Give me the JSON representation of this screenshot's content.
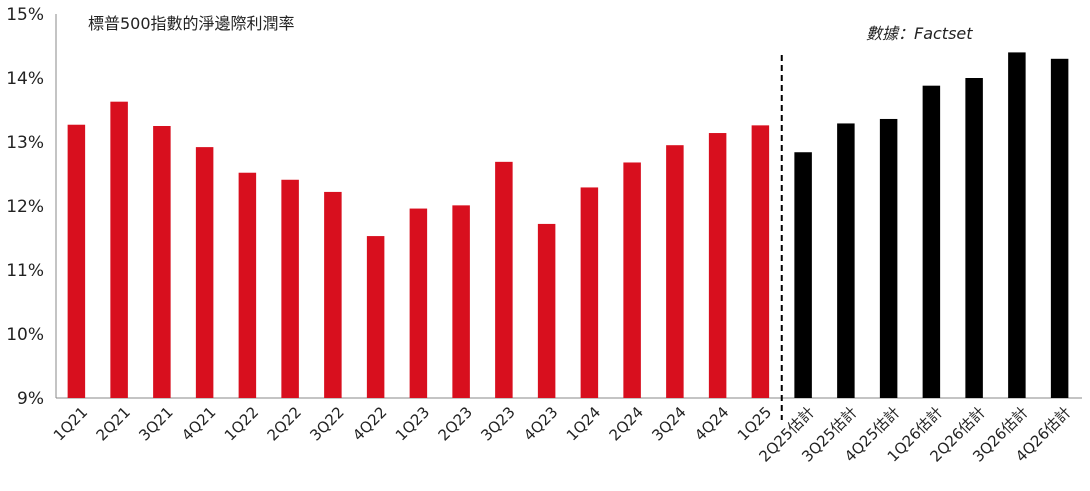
{
  "chart_data": {
    "type": "bar",
    "title": "標普500指數的淨邊際利潤率",
    "source": "數據：Factset",
    "xlabel": "",
    "ylabel": "",
    "ylim": [
      9,
      15
    ],
    "yticks": [
      "9%",
      "10%",
      "11%",
      "12%",
      "13%",
      "14%",
      "15%"
    ],
    "grid": false,
    "colors": {
      "actual": "#d80f1e",
      "estimate": "#000000",
      "divider": "#000000"
    },
    "categories": [
      "1Q21",
      "2Q21",
      "3Q21",
      "4Q21",
      "1Q22",
      "2Q22",
      "3Q22",
      "4Q22",
      "1Q23",
      "2Q23",
      "3Q23",
      "4Q23",
      "1Q24",
      "2Q24",
      "3Q24",
      "4Q24",
      "1Q25",
      "2Q25估計",
      "3Q25估計",
      "4Q25估計",
      "1Q26估計",
      "2Q26估計",
      "3Q26估計",
      "4Q26估計"
    ],
    "values": [
      13.27,
      13.63,
      13.25,
      12.92,
      12.52,
      12.41,
      12.22,
      11.53,
      11.96,
      12.01,
      12.69,
      11.72,
      12.29,
      12.68,
      12.95,
      13.14,
      13.26,
      12.84,
      13.29,
      13.36,
      13.88,
      14.0,
      14.4,
      14.3
    ],
    "estimate_start_index": 17
  }
}
